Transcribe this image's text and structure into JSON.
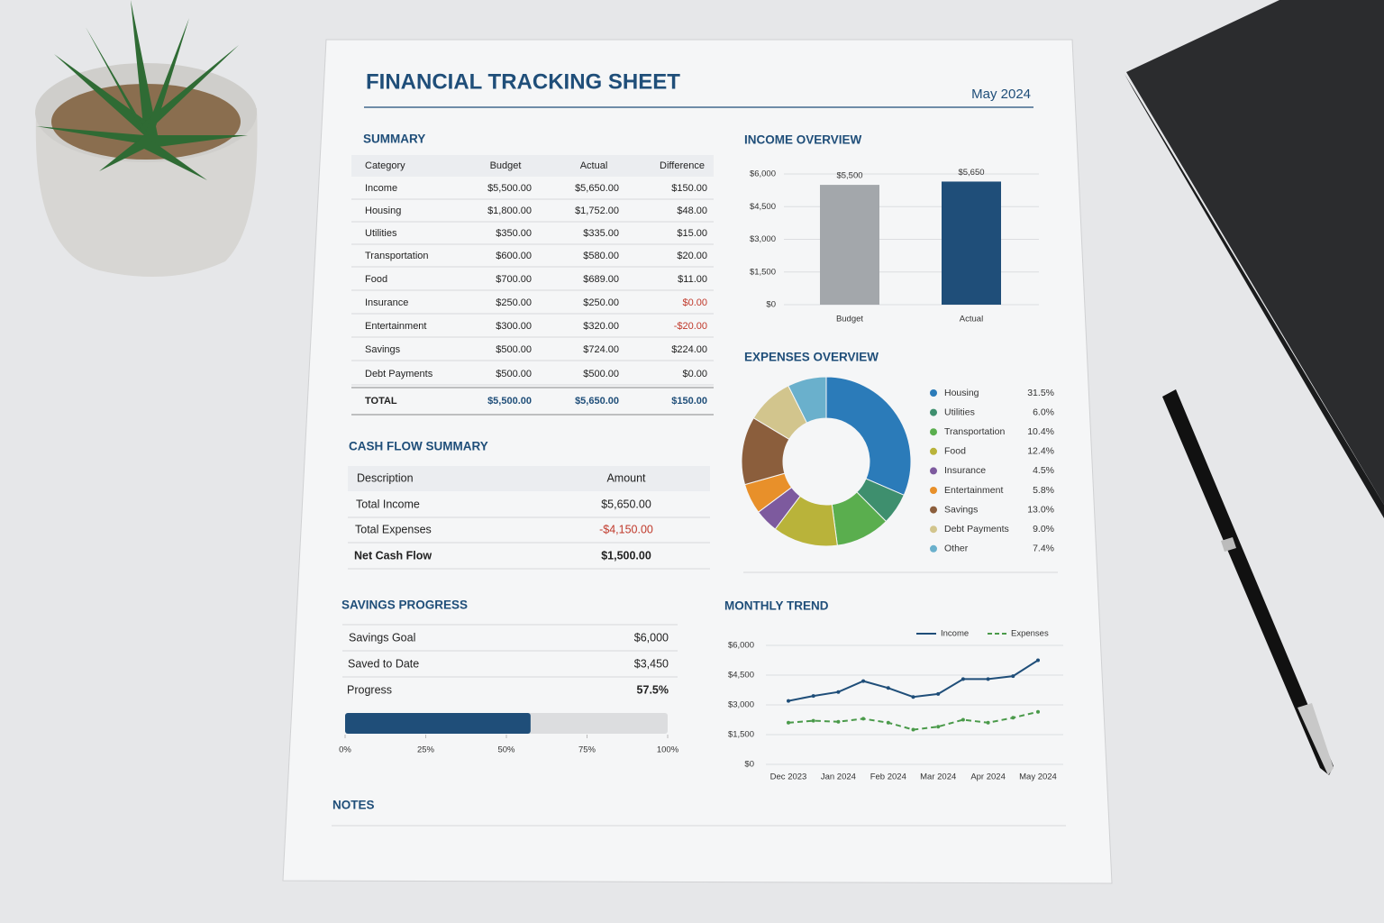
{
  "header": {
    "title": "FINANCIAL TRACKING SHEET",
    "date": "May 2024"
  },
  "summary": {
    "title": "SUMMARY",
    "columns": [
      "Category",
      "Budget",
      "Actual",
      "Difference"
    ],
    "rows": [
      [
        "Income",
        "$5,500.00",
        "$5,650.00",
        "$150.00"
      ],
      [
        "Housing",
        "$1,800.00",
        "$1,752.00",
        "$48.00"
      ],
      [
        "Utilities",
        "$350.00",
        "$335.00",
        "$15.00"
      ],
      [
        "Transportation",
        "$600.00",
        "$580.00",
        "$20.00"
      ],
      [
        "Food",
        "$700.00",
        "$689.00",
        "$11.00"
      ],
      [
        "Insurance",
        "$250.00",
        "$250.00",
        "$0.00"
      ],
      [
        "Entertainment",
        "$300.00",
        "$320.00",
        "-$20.00"
      ],
      [
        "Savings",
        "$500.00",
        "$724.00",
        "$224.00"
      ],
      [
        "Debt Payments",
        "$500.00",
        "$500.00",
        "$0.00"
      ]
    ],
    "total": [
      "TOTAL",
      "$5,500.00",
      "$5,650.00",
      "$150.00"
    ]
  },
  "cash_flow": {
    "title": "CASH FLOW SUMMARY",
    "columns": [
      "Description",
      "Amount"
    ],
    "rows": [
      [
        "Total Income",
        "$5,650.00"
      ],
      [
        "Total Expenses",
        "-$4,150.00"
      ],
      [
        "Net Cash Flow",
        "$1,500.00"
      ]
    ]
  },
  "savings": {
    "title": "SAVINGS PROGRESS",
    "rows": [
      [
        "Savings Goal",
        "$6,000"
      ],
      [
        "Saved to Date",
        "$3,450"
      ],
      [
        "Progress",
        "57.5%"
      ]
    ]
  },
  "notes": {
    "title": "NOTES"
  },
  "chart_data": [
    {
      "type": "bar",
      "title": "INCOME OVERVIEW",
      "categories": [
        "Budget",
        "Actual"
      ],
      "values": [
        5500,
        5650
      ],
      "value_labels": [
        "$5,500",
        "$5,650"
      ],
      "colors": [
        "#a3a7ab",
        "#1f4e79"
      ],
      "ylim": [
        0,
        6000
      ],
      "yticks": [
        {
          "value": 0,
          "label": "$0"
        },
        {
          "value": 1500,
          "label": "$1,500"
        },
        {
          "value": 3000,
          "label": "$3,000"
        },
        {
          "value": 4500,
          "label": "$4,500"
        },
        {
          "value": 6000,
          "label": "$6,000"
        }
      ],
      "grid": true
    },
    {
      "type": "donut",
      "title": "EXPENSES OVERVIEW",
      "categories": [
        "Housing",
        "Utilities",
        "Transportation",
        "Food",
        "Insurance",
        "Entertainment",
        "Savings",
        "Debt Payments",
        "Other"
      ],
      "values": [
        31.5,
        6.0,
        10.4,
        12.4,
        4.5,
        5.8,
        13.0,
        9.0,
        7.4
      ],
      "value_labels": [
        "31.5%",
        "6.0%",
        "10.4%",
        "12.4%",
        "4.5%",
        "5.8%",
        "13.0%",
        "9.0%",
        "7.4%"
      ],
      "colors": [
        "#2b7bb9",
        "#3e8f6e",
        "#5aae4e",
        "#b9b33a",
        "#7d5a9e",
        "#e8902a",
        "#8b5e3c",
        "#d2c58d",
        "#6ab0cc"
      ]
    },
    {
      "type": "progress",
      "values": [
        57.5
      ],
      "color": "#1f4e79",
      "xlim": [
        0,
        100
      ],
      "xticks": [
        {
          "value": 0,
          "label": "0%"
        },
        {
          "value": 25,
          "label": "25%"
        },
        {
          "value": 50,
          "label": "50%"
        },
        {
          "value": 75,
          "label": "75%"
        },
        {
          "value": 100,
          "label": "100%"
        }
      ]
    },
    {
      "type": "line",
      "title": "MONTHLY TREND",
      "categories": [
        "Dec 2023",
        null,
        "Jan 2024",
        null,
        "Feb 2024",
        null,
        "Mar 2024",
        null,
        "Apr 2024",
        null,
        "May 2024"
      ],
      "series": [
        {
          "name": "Income",
          "color": "#1f4e79",
          "values": [
            3200,
            3450,
            3650,
            4200,
            3850,
            3400,
            3550,
            4300,
            4300,
            4450,
            5250
          ]
        },
        {
          "name": "Expenses",
          "color": "#4a9a4a",
          "dashed": true,
          "values": [
            2100,
            2200,
            2150,
            2300,
            2100,
            1750,
            1900,
            2250,
            2100,
            2350,
            2650
          ]
        }
      ],
      "ylim": [
        0,
        6000
      ],
      "yticks": [
        {
          "value": 0,
          "label": "$0"
        },
        {
          "value": 1500,
          "label": "$1,500"
        },
        {
          "value": 3000,
          "label": "$3,000"
        },
        {
          "value": 4500,
          "label": "$4,500"
        },
        {
          "value": 6000,
          "label": "$6,000"
        }
      ],
      "grid": true
    }
  ]
}
